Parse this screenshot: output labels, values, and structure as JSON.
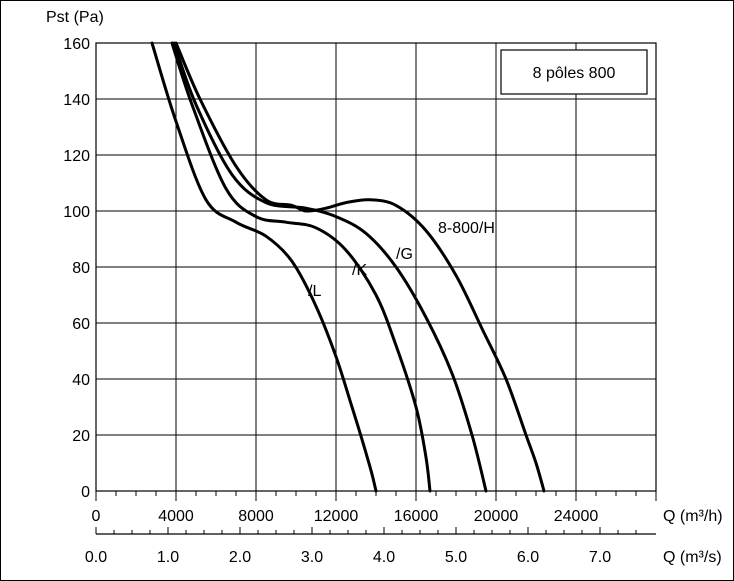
{
  "chart_data": {
    "type": "line",
    "title": "8 pôles 800",
    "ylabel": "Pst (Pa)",
    "xlabel_primary": "Q (m³/h)",
    "xlabel_secondary": "Q (m³/s)",
    "xlim": [
      0,
      28000
    ],
    "ylim": [
      0,
      160
    ],
    "y_ticks": [
      "0",
      "20",
      "40",
      "60",
      "80",
      "100",
      "120",
      "140",
      "160"
    ],
    "x_ticks_primary": [
      "0",
      "4000",
      "8000",
      "12000",
      "16000",
      "20000",
      "24000"
    ],
    "x_ticks_secondary": [
      "0.0",
      "1.0",
      "2.0",
      "3.0",
      "4.0",
      "5.0",
      "6.0",
      "7.0"
    ],
    "grid": true,
    "series": [
      {
        "name": "/L",
        "x": [
          2800,
          4000,
          5500,
          7000,
          8500,
          9800,
          11000,
          12000,
          12800,
          13400,
          13800,
          14000
        ],
        "y": [
          160,
          132,
          104,
          96,
          91,
          82,
          66,
          48,
          30,
          16,
          6,
          0
        ]
      },
      {
        "name": "/K",
        "x": [
          3800,
          4800,
          6500,
          8000,
          9500,
          11000,
          12500,
          14000,
          15000,
          16000,
          16500,
          16700
        ],
        "y": [
          160,
          138,
          108,
          98,
          96,
          94,
          86,
          70,
          52,
          30,
          12,
          0
        ]
      },
      {
        "name": "/G",
        "x": [
          3900,
          5000,
          6800,
          8500,
          10500,
          12000,
          13500,
          15000,
          16500,
          17800,
          18800,
          19500
        ],
        "y": [
          160,
          138,
          113,
          103,
          101,
          98,
          92,
          80,
          62,
          42,
          20,
          0
        ]
      },
      {
        "name": "8-800/H",
        "x": [
          4000,
          5200,
          7000,
          8500,
          9800,
          10500,
          11500,
          12500,
          13700,
          15000,
          16500,
          18000,
          19300,
          20500,
          21500,
          22000,
          22400
        ],
        "y": [
          160,
          140,
          116,
          104,
          102,
          100,
          101,
          103,
          104,
          102,
          93,
          77,
          58,
          40,
          20,
          10,
          0
        ]
      }
    ],
    "curve_labels": [
      "/L",
      "/K",
      "/G",
      "8-800/H"
    ]
  }
}
